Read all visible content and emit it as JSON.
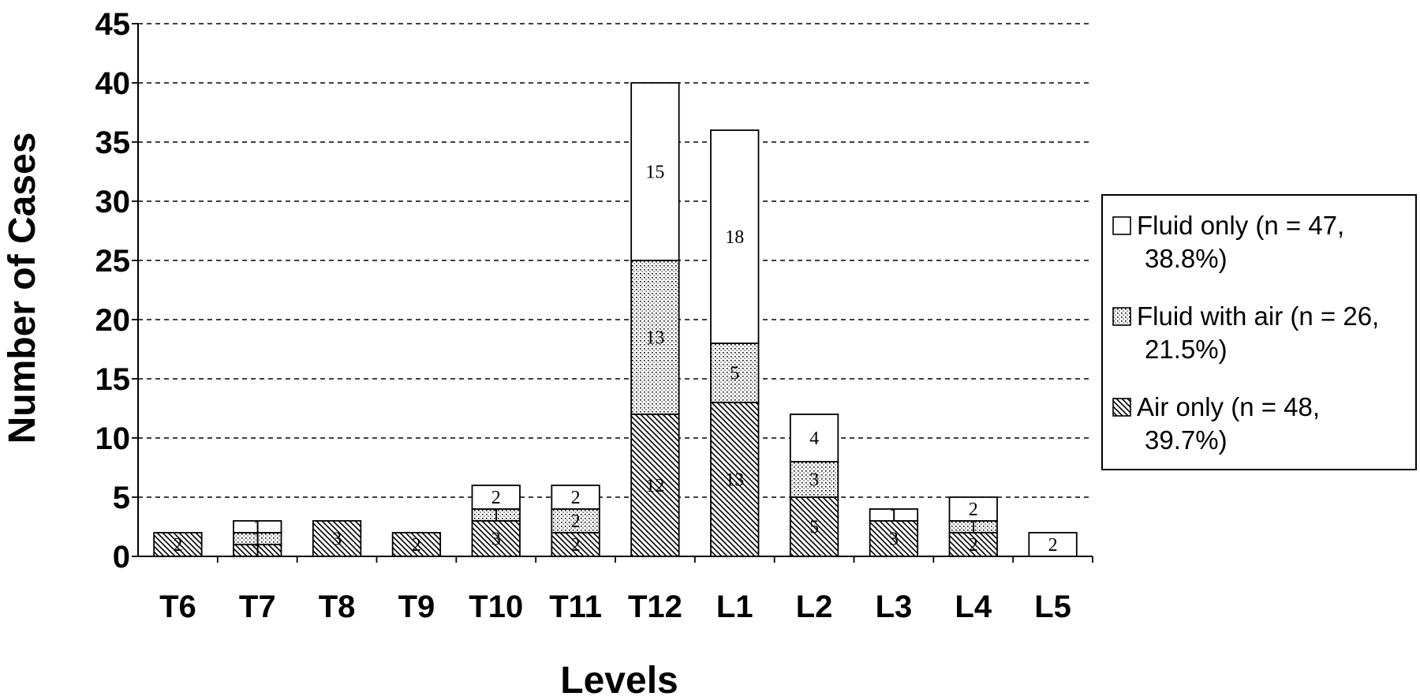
{
  "chart_data": {
    "type": "bar",
    "stacked": true,
    "categories": [
      "T6",
      "T7",
      "T8",
      "T9",
      "T10",
      "T11",
      "T12",
      "L1",
      "L2",
      "L3",
      "L4",
      "L5"
    ],
    "series": [
      {
        "name": "Air only (n = 48, 39.7%)",
        "values": [
          2,
          1,
          3,
          2,
          3,
          2,
          12,
          13,
          5,
          3,
          2,
          0
        ],
        "pattern": "hatch"
      },
      {
        "name": "Fluid with air (n = 26, 21.5%)",
        "values": [
          0,
          1,
          0,
          0,
          1,
          2,
          13,
          5,
          3,
          0,
          1,
          0
        ],
        "pattern": "dots"
      },
      {
        "name": "Fluid only (n = 47, 38.8%)",
        "values": [
          0,
          1,
          0,
          0,
          2,
          2,
          15,
          18,
          4,
          1,
          2,
          2
        ],
        "pattern": "solid"
      }
    ],
    "yticks": [
      0,
      5,
      10,
      15,
      20,
      25,
      30,
      35,
      40,
      45
    ],
    "ylim": [
      0,
      45
    ],
    "xlabel": "Levels",
    "ylabel": "Number of Cases",
    "grid": "horizontal-dashed",
    "legend": {
      "position": "right",
      "entries": [
        {
          "series": 2,
          "lines": [
            "Fluid only (n = 47,",
            "38.8%)"
          ]
        },
        {
          "series": 1,
          "lines": [
            "Fluid with air (n = 26,",
            "21.5%)"
          ]
        },
        {
          "series": 0,
          "lines": [
            "Air only (n = 48,",
            "39.7%)"
          ]
        }
      ]
    },
    "colors": {
      "fill": "#ffffff",
      "stroke": "#000000"
    }
  }
}
